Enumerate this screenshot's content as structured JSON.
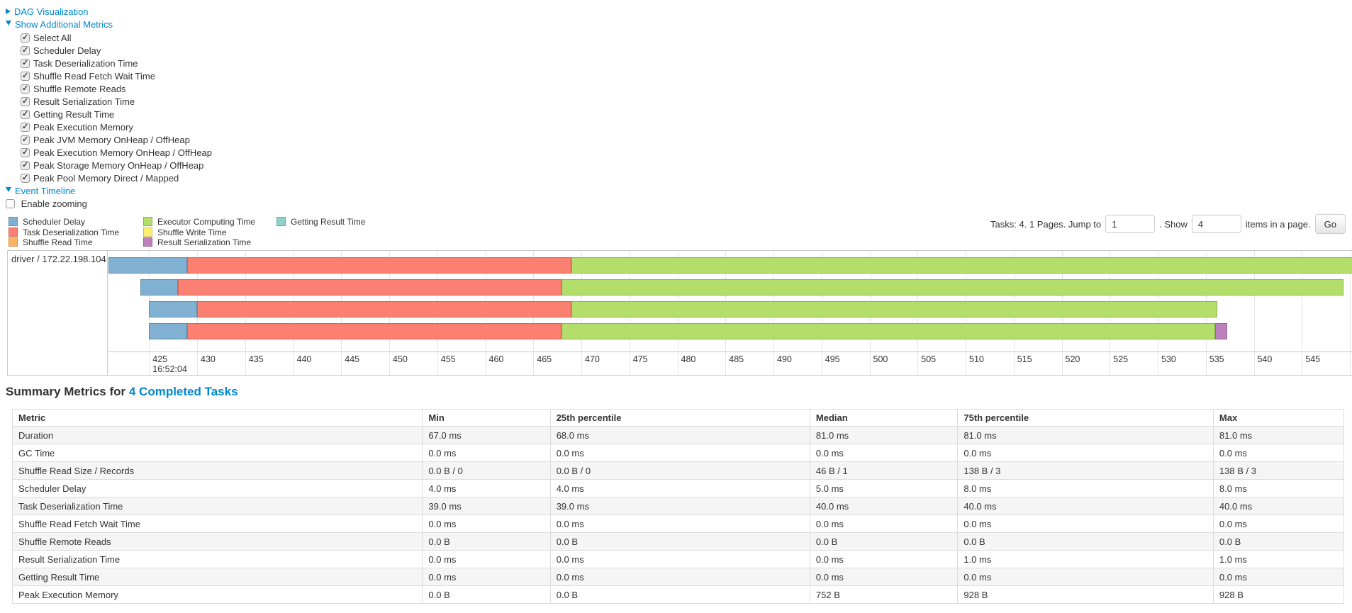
{
  "controls": {
    "dag": {
      "label": "DAG Visualization",
      "expanded": false
    },
    "metrics_toggle": {
      "label": "Show Additional Metrics",
      "expanded": true
    },
    "metric_checkboxes": [
      {
        "label": "Select All",
        "checked": true
      },
      {
        "label": "Scheduler Delay",
        "checked": true
      },
      {
        "label": "Task Deserialization Time",
        "checked": true
      },
      {
        "label": "Shuffle Read Fetch Wait Time",
        "checked": true
      },
      {
        "label": "Shuffle Remote Reads",
        "checked": true
      },
      {
        "label": "Result Serialization Time",
        "checked": true
      },
      {
        "label": "Getting Result Time",
        "checked": true
      },
      {
        "label": "Peak Execution Memory",
        "checked": true
      },
      {
        "label": "Peak JVM Memory OnHeap / OffHeap",
        "checked": true
      },
      {
        "label": "Peak Execution Memory OnHeap / OffHeap",
        "checked": true
      },
      {
        "label": "Peak Storage Memory OnHeap / OffHeap",
        "checked": true
      },
      {
        "label": "Peak Pool Memory Direct / Mapped",
        "checked": true
      }
    ],
    "event_timeline": {
      "label": "Event Timeline",
      "expanded": true
    },
    "enable_zooming": {
      "label": "Enable zooming",
      "checked": false
    }
  },
  "pagination": {
    "prefix": "Tasks: 4. 1 Pages. Jump to",
    "jump_value": "1",
    "mid": ". Show",
    "show_value": "4",
    "suffix": "items in a page.",
    "go_label": "Go"
  },
  "colors": {
    "link": "#0088cc",
    "scheduler_delay": "#80B1D3",
    "task_deserialization": "#FB8072",
    "shuffle_read": "#FDB462",
    "executor_computing": "#B3DE69",
    "shuffle_write": "#FFED6F",
    "result_serialization": "#BC80BD",
    "getting_result": "#8DD3C7"
  },
  "chart_data": {
    "type": "timeline-gantt",
    "group_label": "driver / 172.22.198.104",
    "legend": [
      {
        "key": "scheduler_delay",
        "label": "Scheduler Delay"
      },
      {
        "key": "task_deserialization",
        "label": "Task Deserialization Time"
      },
      {
        "key": "shuffle_read",
        "label": "Shuffle Read Time"
      },
      {
        "key": "executor_computing",
        "label": "Executor Computing Time"
      },
      {
        "key": "shuffle_write",
        "label": "Shuffle Write Time"
      },
      {
        "key": "result_serialization",
        "label": "Result Serialization Time"
      },
      {
        "key": "getting_result",
        "label": "Getting Result Time"
      }
    ],
    "x_axis": {
      "unit": "ms within second 16:52:04",
      "major_label": "16:52:04",
      "tick_min": 425,
      "tick_max": 550,
      "tick_step": 5,
      "view_min": 420.7,
      "view_max": 551.0
    },
    "tasks": [
      {
        "segments": [
          {
            "type": "scheduler_delay",
            "start": 420.8,
            "end": 429.0
          },
          {
            "type": "task_deserialization",
            "start": 429.0,
            "end": 469.0
          },
          {
            "type": "executor_computing",
            "start": 469.0,
            "end": 551.0
          }
        ]
      },
      {
        "segments": [
          {
            "type": "scheduler_delay",
            "start": 424.1,
            "end": 428.0
          },
          {
            "type": "task_deserialization",
            "start": 428.0,
            "end": 467.9
          },
          {
            "type": "executor_computing",
            "start": 467.9,
            "end": 549.3
          }
        ]
      },
      {
        "segments": [
          {
            "type": "scheduler_delay",
            "start": 425.0,
            "end": 430.0
          },
          {
            "type": "task_deserialization",
            "start": 430.0,
            "end": 469.0
          },
          {
            "type": "executor_computing",
            "start": 469.0,
            "end": 536.2
          }
        ]
      },
      {
        "segments": [
          {
            "type": "scheduler_delay",
            "start": 425.0,
            "end": 429.0
          },
          {
            "type": "task_deserialization",
            "start": 429.0,
            "end": 467.9
          },
          {
            "type": "executor_computing",
            "start": 467.9,
            "end": 536.0
          },
          {
            "type": "result_serialization",
            "start": 536.0,
            "end": 537.2
          }
        ]
      }
    ]
  },
  "summary": {
    "title_prefix": "Summary Metrics for",
    "title_link": "4 Completed Tasks",
    "columns": [
      "Metric",
      "Min",
      "25th percentile",
      "Median",
      "75th percentile",
      "Max"
    ],
    "rows": [
      [
        "Duration",
        "67.0 ms",
        "68.0 ms",
        "81.0 ms",
        "81.0 ms",
        "81.0 ms"
      ],
      [
        "GC Time",
        "0.0 ms",
        "0.0 ms",
        "0.0 ms",
        "0.0 ms",
        "0.0 ms"
      ],
      [
        "Shuffle Read Size / Records",
        "0.0 B / 0",
        "0.0 B / 0",
        "46 B / 1",
        "138 B / 3",
        "138 B / 3"
      ],
      [
        "Scheduler Delay",
        "4.0 ms",
        "4.0 ms",
        "5.0 ms",
        "8.0 ms",
        "8.0 ms"
      ],
      [
        "Task Deserialization Time",
        "39.0 ms",
        "39.0 ms",
        "40.0 ms",
        "40.0 ms",
        "40.0 ms"
      ],
      [
        "Shuffle Read Fetch Wait Time",
        "0.0 ms",
        "0.0 ms",
        "0.0 ms",
        "0.0 ms",
        "0.0 ms"
      ],
      [
        "Shuffle Remote Reads",
        "0.0 B",
        "0.0 B",
        "0.0 B",
        "0.0 B",
        "0.0 B"
      ],
      [
        "Result Serialization Time",
        "0.0 ms",
        "0.0 ms",
        "0.0 ms",
        "1.0 ms",
        "1.0 ms"
      ],
      [
        "Getting Result Time",
        "0.0 ms",
        "0.0 ms",
        "0.0 ms",
        "0.0 ms",
        "0.0 ms"
      ],
      [
        "Peak Execution Memory",
        "0.0 B",
        "0.0 B",
        "752 B",
        "928 B",
        "928 B"
      ]
    ]
  }
}
